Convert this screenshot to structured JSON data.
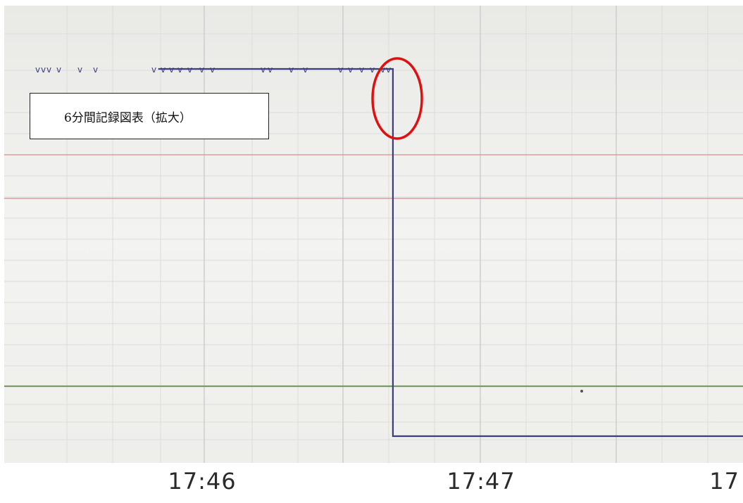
{
  "chart_data": {
    "type": "line",
    "title": "",
    "annotation_box": "6分間記録図表（拡大）",
    "xlabel": "",
    "ylabel": "",
    "x_tick_labels": [
      "17:46",
      "17:47",
      "17"
    ],
    "series": [
      {
        "color": "#3a3f7a",
        "x": [
          "17:45:50",
          "17:46:41",
          "17:46:41",
          "17:48:00"
        ],
        "y": [
          "high",
          "high",
          "low",
          "low"
        ]
      }
    ],
    "reference_lines": [
      {
        "color": "#d98c8c"
      },
      {
        "color": "#d98c8c"
      },
      {
        "color": "#7c9a62"
      }
    ],
    "highlight": {
      "shape": "ellipse",
      "color": "#e01010",
      "at_x": "17:46:41"
    },
    "grid": true
  },
  "colors": {
    "background": "#f4f4f2",
    "grid_minor": "#dcdcdc",
    "grid_major": "#cfcfcf",
    "signal": "#3a3f7a",
    "pink_line": "#d98c8c",
    "green_line": "#7c9a62",
    "highlight": "#e01010"
  }
}
